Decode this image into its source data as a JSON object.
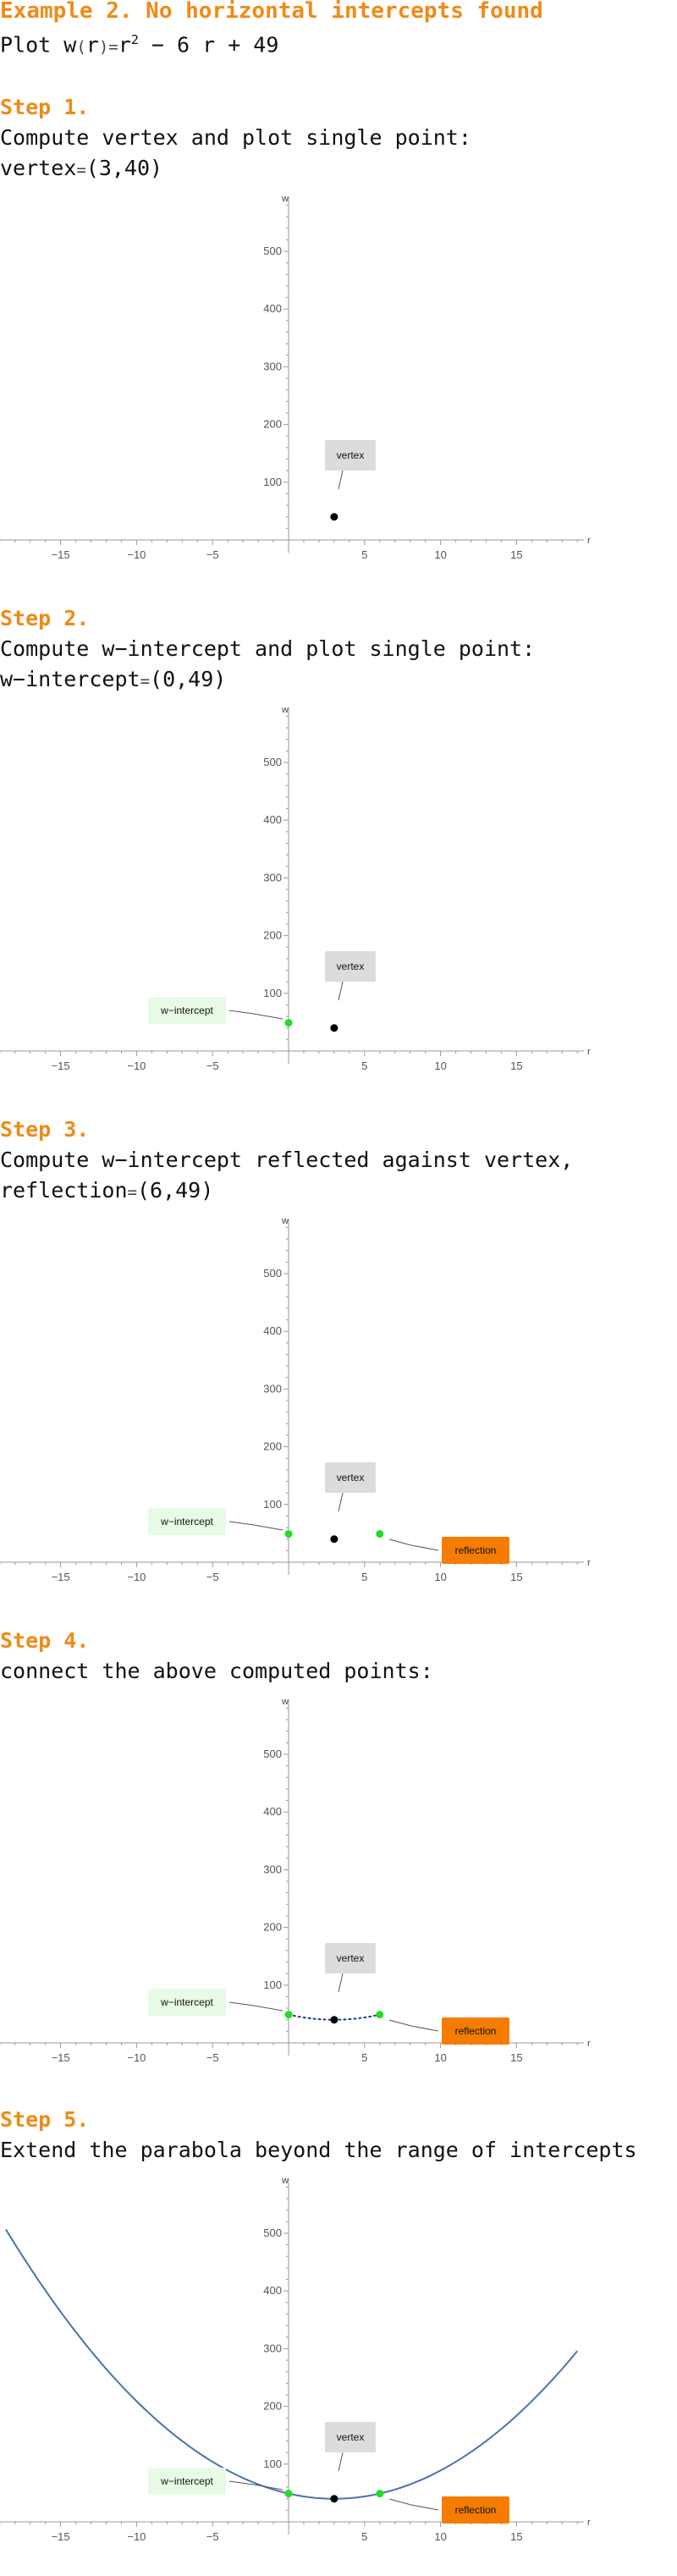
{
  "page": {
    "title": "Example 2. No horizontal intercepts found",
    "plot_prefix": "Plot ",
    "func_name": "w",
    "func_var": "r",
    "func_eq": "=",
    "func_rhs_r": "r",
    "func_rhs_exp": "2",
    "func_rhs_rest": " − 6 r + 49"
  },
  "steps": [
    {
      "heading": "Step 1.",
      "text": "Compute vertex and plot single point:",
      "line2_label": "vertex",
      "line2_eq": "=",
      "line2_value": "(3,40)"
    },
    {
      "heading": "Step 2.",
      "text": "Compute w−intercept and plot single point:",
      "line2_label": "w−intercept",
      "line2_eq": "=",
      "line2_value": "(0,49)"
    },
    {
      "heading": "Step 3.",
      "text": "Compute w−intercept reflected against vertex,",
      "line2_label": "reflection",
      "line2_eq": "=",
      "line2_value": "(6,49)"
    },
    {
      "heading": "Step 4.",
      "text": "connect the above computed points:"
    },
    {
      "heading": "Step 5.",
      "text": "Extend the parabola beyond the range of intercepts"
    }
  ],
  "chart_data": [
    {
      "type": "scatter",
      "xlabel": "r",
      "ylabel": "w",
      "xlim": [
        -19,
        19.5
      ],
      "ylim": [
        -25,
        590
      ],
      "xticks": [
        -15,
        -10,
        -5,
        5,
        10,
        15
      ],
      "yticks": [
        100,
        200,
        300,
        400,
        500
      ],
      "points": [
        {
          "x": 3,
          "y": 40,
          "label": "vertex",
          "color": "#000000"
        }
      ],
      "curve": "none"
    },
    {
      "type": "scatter",
      "xlabel": "r",
      "ylabel": "w",
      "xlim": [
        -19,
        19.5
      ],
      "ylim": [
        -25,
        590
      ],
      "xticks": [
        -15,
        -10,
        -5,
        5,
        10,
        15
      ],
      "yticks": [
        100,
        200,
        300,
        400,
        500
      ],
      "points": [
        {
          "x": 3,
          "y": 40,
          "label": "vertex",
          "color": "#000000"
        },
        {
          "x": 0,
          "y": 49,
          "label": "w−intercept",
          "color": "#22dd22"
        }
      ],
      "curve": "none"
    },
    {
      "type": "scatter",
      "xlabel": "r",
      "ylabel": "w",
      "xlim": [
        -19,
        19.5
      ],
      "ylim": [
        -25,
        590
      ],
      "xticks": [
        -15,
        -10,
        -5,
        5,
        10,
        15
      ],
      "yticks": [
        100,
        200,
        300,
        400,
        500
      ],
      "points": [
        {
          "x": 3,
          "y": 40,
          "label": "vertex",
          "color": "#000000"
        },
        {
          "x": 0,
          "y": 49,
          "label": "w−intercept",
          "color": "#22dd22"
        },
        {
          "x": 6,
          "y": 49,
          "label": "reflection",
          "color": "#22dd22"
        }
      ],
      "curve": "none"
    },
    {
      "type": "scatter",
      "xlabel": "r",
      "ylabel": "w",
      "xlim": [
        -19,
        19.5
      ],
      "ylim": [
        -25,
        590
      ],
      "xticks": [
        -15,
        -10,
        -5,
        5,
        10,
        15
      ],
      "yticks": [
        100,
        200,
        300,
        400,
        500
      ],
      "points": [
        {
          "x": 3,
          "y": 40,
          "label": "vertex",
          "color": "#000000"
        },
        {
          "x": 0,
          "y": 49,
          "label": "w−intercept",
          "color": "#22dd22"
        },
        {
          "x": 6,
          "y": 49,
          "label": "reflection",
          "color": "#22dd22"
        }
      ],
      "curve": "dotted",
      "curve_range": [
        0,
        6
      ]
    },
    {
      "type": "line",
      "xlabel": "r",
      "ylabel": "w",
      "xlim": [
        -19,
        19.5
      ],
      "ylim": [
        -25,
        590
      ],
      "xticks": [
        -15,
        -10,
        -5,
        5,
        10,
        15
      ],
      "yticks": [
        100,
        200,
        300,
        400,
        500
      ],
      "points": [
        {
          "x": 3,
          "y": 40,
          "label": "vertex",
          "color": "#000000"
        },
        {
          "x": 0,
          "y": 49,
          "label": "w−intercept",
          "color": "#22dd22"
        },
        {
          "x": 6,
          "y": 49,
          "label": "reflection",
          "color": "#22dd22"
        }
      ],
      "curve": "solid",
      "curve_range": [
        -18.6,
        19
      ],
      "curve_color": "#4a72b0"
    }
  ],
  "colors": {
    "accent": "#f08a17",
    "vertex_label_bg": "#dcdcdc",
    "intercept_label_bg": "#e8fbe6",
    "reflection_label_bg": "#f57c00",
    "curve_dotted": "#1f3a93",
    "curve_solid": "#4a72b0"
  }
}
